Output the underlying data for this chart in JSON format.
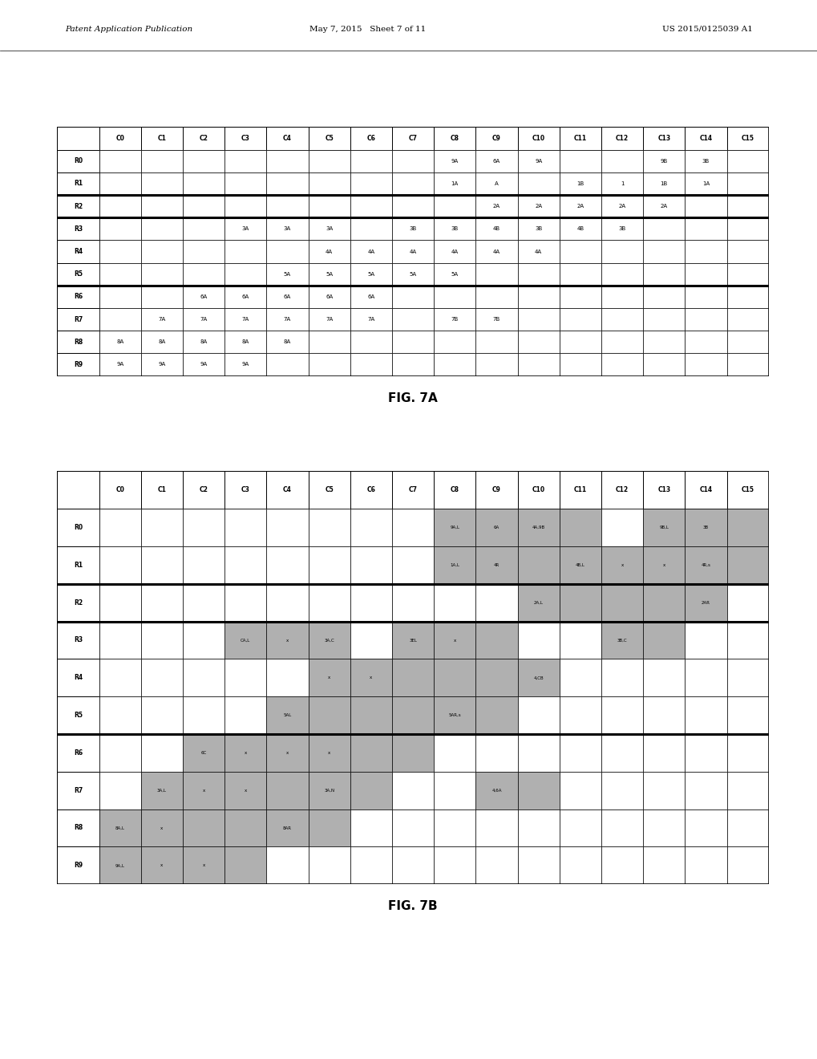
{
  "header_text_left": "Patent Application Publication",
  "header_text_mid": "May 7, 2015   Sheet 7 of 11",
  "header_text_right": "US 2015/0125039 A1",
  "fig7a_label": "FIG. 7A",
  "fig7b_label": "FIG. 7B",
  "col_headers": [
    "",
    "C0",
    "C1",
    "C2",
    "C3",
    "C4",
    "C5",
    "C6",
    "C7",
    "C8",
    "C9",
    "C10",
    "C11",
    "C12",
    "C13",
    "C14",
    "C15"
  ],
  "row_headers_7a": [
    "R0",
    "R1",
    "R2",
    "R3",
    "R4",
    "R5",
    "R6",
    "R7",
    "R8",
    "R9"
  ],
  "table7a": [
    [
      "",
      "",
      "",
      "",
      "",
      "",
      "",
      "",
      "9A",
      "6A",
      "9A",
      "",
      "",
      "9B",
      "3B",
      ""
    ],
    [
      "",
      "",
      "",
      "",
      "",
      "",
      "",
      "",
      "1A",
      "A",
      "",
      "1B",
      "1",
      "1B",
      "1A",
      ""
    ],
    [
      "",
      "",
      "",
      "",
      "",
      "",
      "",
      "",
      "",
      "2A",
      "2A",
      "2A",
      "2A",
      "2A",
      "",
      ""
    ],
    [
      "",
      "",
      "",
      "3A",
      "3A",
      "3A",
      "",
      "3B",
      "3B",
      "4B",
      "3B",
      "4B",
      "3B",
      "",
      "",
      ""
    ],
    [
      "",
      "",
      "",
      "",
      "",
      "4A",
      "4A",
      "4A",
      "4A",
      "4A",
      "4A",
      "",
      "",
      "",
      "",
      ""
    ],
    [
      "",
      "",
      "",
      "",
      "5A",
      "5A",
      "5A",
      "5A",
      "5A",
      "",
      "",
      "",
      "",
      "",
      "",
      ""
    ],
    [
      "",
      "",
      "6A",
      "6A",
      "6A",
      "6A",
      "6A",
      "",
      "",
      "",
      "",
      "",
      "",
      "",
      "",
      ""
    ],
    [
      "",
      "7A",
      "7A",
      "7A",
      "7A",
      "7A",
      "7A",
      "",
      "7B",
      "7B",
      "",
      "",
      "",
      "",
      "",
      ""
    ],
    [
      "8A",
      "8A",
      "8A",
      "8A",
      "8A",
      "",
      "",
      "",
      "",
      "",
      "",
      "",
      "",
      "",
      "",
      ""
    ],
    [
      "9A",
      "9A",
      "9A",
      "9A",
      "",
      "",
      "",
      "",
      "",
      "",
      "",
      "",
      "",
      "",
      "",
      ""
    ]
  ],
  "thick_after_7a": [
    1,
    2,
    5
  ],
  "row_headers_7b": [
    "R0",
    "R1",
    "R2",
    "R3",
    "R4",
    "R5",
    "R6",
    "R7",
    "R8",
    "R9"
  ],
  "table7b_shaded": [
    [
      8,
      9,
      10,
      11,
      13,
      14,
      15
    ],
    [
      8,
      9,
      10,
      11,
      12,
      13,
      14,
      15
    ],
    [
      10,
      11,
      12,
      13,
      14
    ],
    [
      3,
      4,
      5,
      7,
      8,
      9,
      12,
      13
    ],
    [
      5,
      6,
      7,
      8,
      9,
      10
    ],
    [
      4,
      5,
      6,
      7,
      8,
      9
    ],
    [
      2,
      3,
      4,
      5,
      6,
      7
    ],
    [
      1,
      2,
      3,
      4,
      5,
      6,
      9,
      10
    ],
    [
      0,
      1,
      2,
      3,
      4,
      5
    ],
    [
      0,
      1,
      2,
      3
    ]
  ],
  "table7b_text": [
    {
      "r": 0,
      "c": 8,
      "t": "9A,L"
    },
    {
      "r": 0,
      "c": 9,
      "t": "6A"
    },
    {
      "r": 0,
      "c": 10,
      "t": "4A,9B"
    },
    {
      "r": 0,
      "c": 13,
      "t": "9B,L"
    },
    {
      "r": 0,
      "c": 14,
      "t": "3B"
    },
    {
      "r": 1,
      "c": 8,
      "t": "1A,L"
    },
    {
      "r": 1,
      "c": 9,
      "t": "4R"
    },
    {
      "r": 1,
      "c": 11,
      "t": "4B,L"
    },
    {
      "r": 1,
      "c": 12,
      "t": "x"
    },
    {
      "r": 1,
      "c": 13,
      "t": "x"
    },
    {
      "r": 1,
      "c": 14,
      "t": "4R,s"
    },
    {
      "r": 2,
      "c": 10,
      "t": "2A,L"
    },
    {
      "r": 2,
      "c": 14,
      "t": "2AR"
    },
    {
      "r": 3,
      "c": 3,
      "t": "CA,L"
    },
    {
      "r": 3,
      "c": 4,
      "t": "x"
    },
    {
      "r": 3,
      "c": 5,
      "t": "3A,C"
    },
    {
      "r": 3,
      "c": 7,
      "t": "3EL"
    },
    {
      "r": 3,
      "c": 8,
      "t": "x"
    },
    {
      "r": 3,
      "c": 12,
      "t": "3B,C"
    },
    {
      "r": 4,
      "c": 5,
      "t": "x"
    },
    {
      "r": 4,
      "c": 6,
      "t": "x"
    },
    {
      "r": 4,
      "c": 10,
      "t": "4,CB"
    },
    {
      "r": 5,
      "c": 4,
      "t": "5AL"
    },
    {
      "r": 5,
      "c": 8,
      "t": "5AR,s"
    },
    {
      "r": 6,
      "c": 2,
      "t": "6C"
    },
    {
      "r": 6,
      "c": 3,
      "t": "x"
    },
    {
      "r": 6,
      "c": 4,
      "t": "x"
    },
    {
      "r": 6,
      "c": 5,
      "t": "x"
    },
    {
      "r": 7,
      "c": 1,
      "t": "3A,L"
    },
    {
      "r": 7,
      "c": 2,
      "t": "x"
    },
    {
      "r": 7,
      "c": 3,
      "t": "x"
    },
    {
      "r": 7,
      "c": 5,
      "t": "3A,N"
    },
    {
      "r": 7,
      "c": 9,
      "t": "4,6A"
    },
    {
      "r": 8,
      "c": 0,
      "t": "8A,L"
    },
    {
      "r": 8,
      "c": 1,
      "t": "x"
    },
    {
      "r": 8,
      "c": 4,
      "t": "8AR"
    },
    {
      "r": 9,
      "c": 0,
      "t": "9A,L"
    },
    {
      "r": 9,
      "c": 1,
      "t": "x"
    },
    {
      "r": 9,
      "c": 2,
      "t": "x"
    }
  ],
  "thick_after_7b": [
    1,
    2,
    5
  ],
  "bg_color": "#ffffff",
  "line_color": "#000000",
  "shaded_color": "#b0b0b0"
}
